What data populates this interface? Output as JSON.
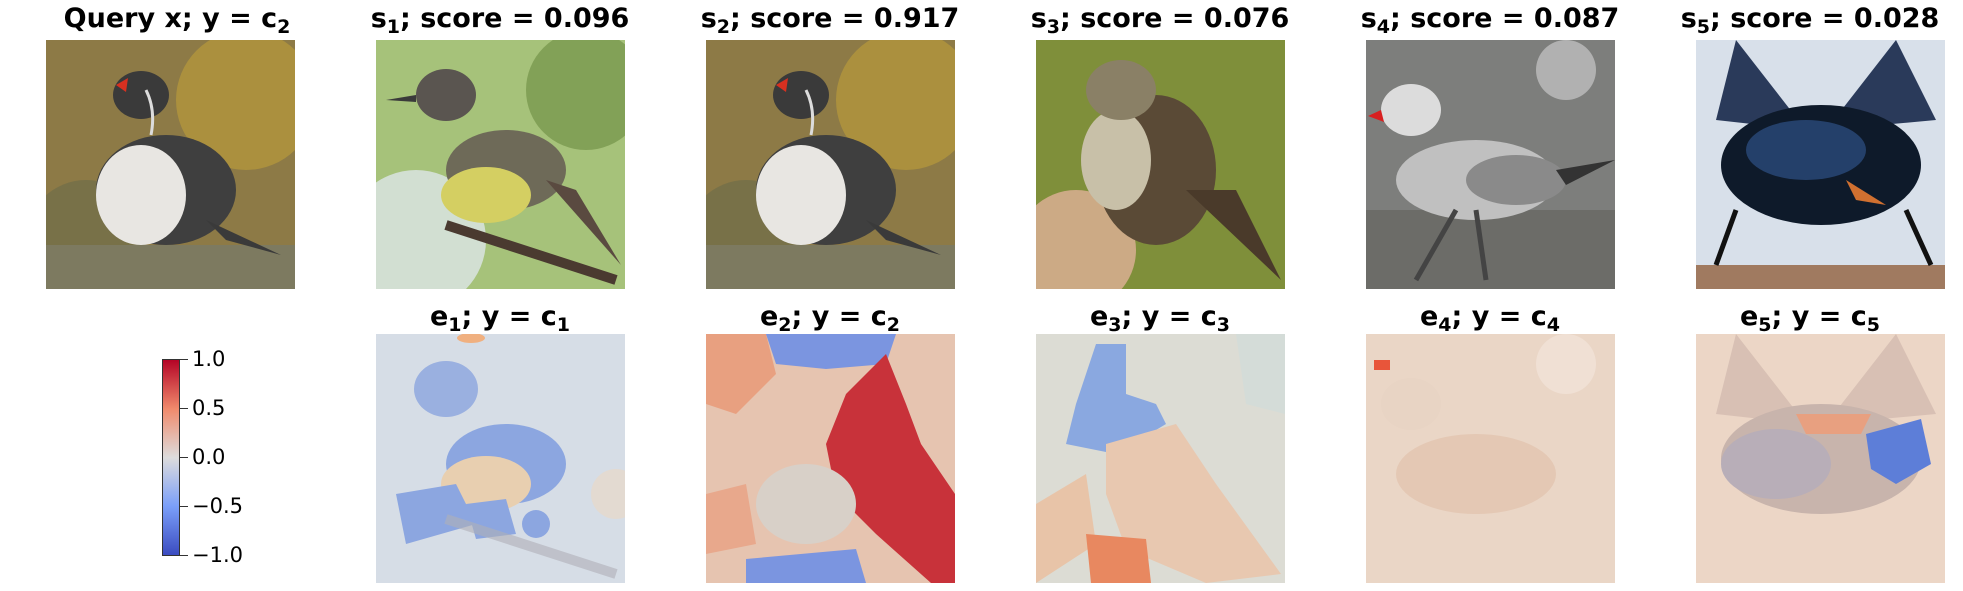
{
  "query": {
    "label": "Query x",
    "y_var": "y",
    "class_base": "c",
    "class_sub": "2"
  },
  "candidates": [
    {
      "s_base": "s",
      "s_sub": "1",
      "score_label": "score",
      "score": "0.096",
      "e_base": "e",
      "e_sub": "1",
      "class_base": "c",
      "class_sub": "1",
      "y_var": "y"
    },
    {
      "s_base": "s",
      "s_sub": "2",
      "score_label": "score",
      "score": "0.917",
      "e_base": "e",
      "e_sub": "2",
      "class_base": "c",
      "class_sub": "2",
      "y_var": "y"
    },
    {
      "s_base": "s",
      "s_sub": "3",
      "score_label": "score",
      "score": "0.076",
      "e_base": "e",
      "e_sub": "3",
      "class_base": "c",
      "class_sub": "3",
      "y_var": "y"
    },
    {
      "s_base": "s",
      "s_sub": "4",
      "score_label": "score",
      "score": "0.087",
      "e_base": "e",
      "e_sub": "4",
      "class_base": "c",
      "class_sub": "4",
      "y_var": "y"
    },
    {
      "s_base": "s",
      "s_sub": "5",
      "score_label": "score",
      "score": "0.028",
      "e_base": "e",
      "e_sub": "5",
      "class_base": "c",
      "class_sub": "5",
      "y_var": "y"
    }
  ],
  "colorbar": {
    "ticks": [
      "1.0",
      "0.5",
      "0.0",
      "−0.5",
      "−1.0"
    ],
    "colors": [
      "#b40426",
      "#f08a6c",
      "#dddcdc",
      "#7b9ff9",
      "#3b4cc0"
    ]
  }
}
